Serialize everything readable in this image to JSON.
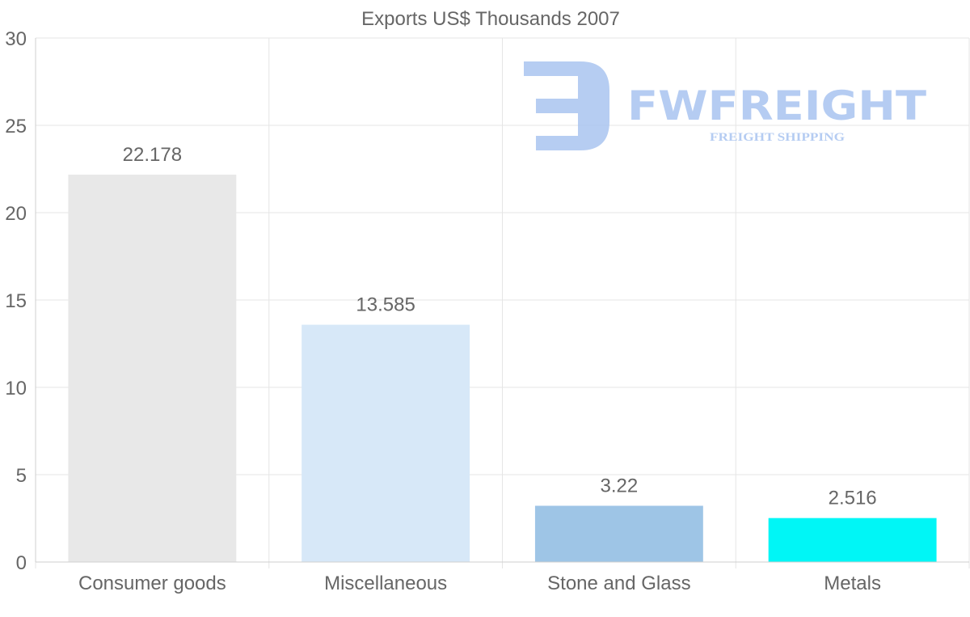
{
  "chart_data": {
    "type": "bar",
    "title": "Exports US$ Thousands 2007",
    "categories": [
      "Consumer goods",
      "Miscellaneous",
      "Stone and Glass",
      "Metals"
    ],
    "values": [
      22.178,
      13.585,
      3.22,
      2.516
    ],
    "value_labels": [
      "22.178",
      "13.585",
      "3.22",
      "2.516"
    ],
    "colors": [
      "#e8e8e8",
      "#d7e8f8",
      "#9ec5e6",
      "#00f6f6"
    ],
    "ylim": [
      0,
      30
    ],
    "yticks": [
      0,
      5,
      10,
      15,
      20,
      25,
      30
    ],
    "xlabel": "",
    "ylabel": "",
    "grid": true
  },
  "watermark": {
    "brand": "FWFREIGHT",
    "tagline": "FREIGHT SHIPPING",
    "color": "#a9c4f0"
  }
}
